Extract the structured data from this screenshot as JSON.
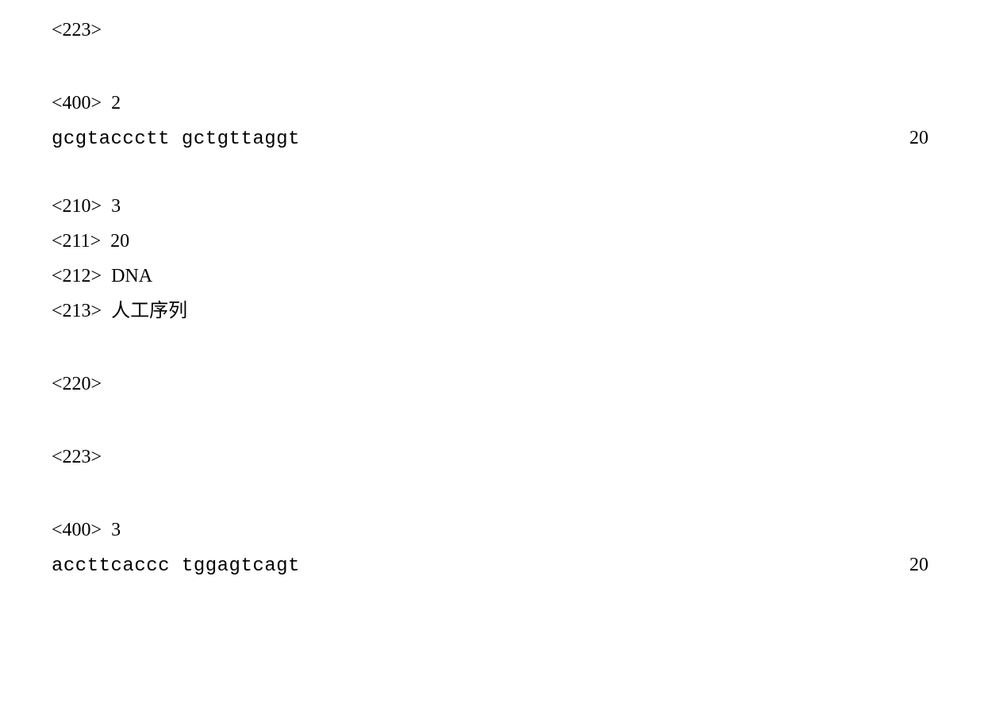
{
  "typography": {
    "font_family": "SimSun, Times New Roman, serif",
    "mono_font_family": "Courier New, monospace",
    "font_size_pt": 18,
    "text_color": "#000000",
    "background_color": "#ffffff"
  },
  "entries": {
    "entry1": {
      "tag223": "<223>",
      "tag400": "<400>  2",
      "sequence": "gcgtaccctt gctgttaggt",
      "sequence_length": "20"
    },
    "entry2": {
      "tag210": "<210>  3",
      "tag211": "<211>  20",
      "tag212": "<212>  DNA",
      "tag213": "<213>  人工序列",
      "tag220": "<220>",
      "tag223": "<223>",
      "tag400": "<400>  3",
      "sequence": "accttcaccc tggagtcagt",
      "sequence_length": "20"
    }
  }
}
